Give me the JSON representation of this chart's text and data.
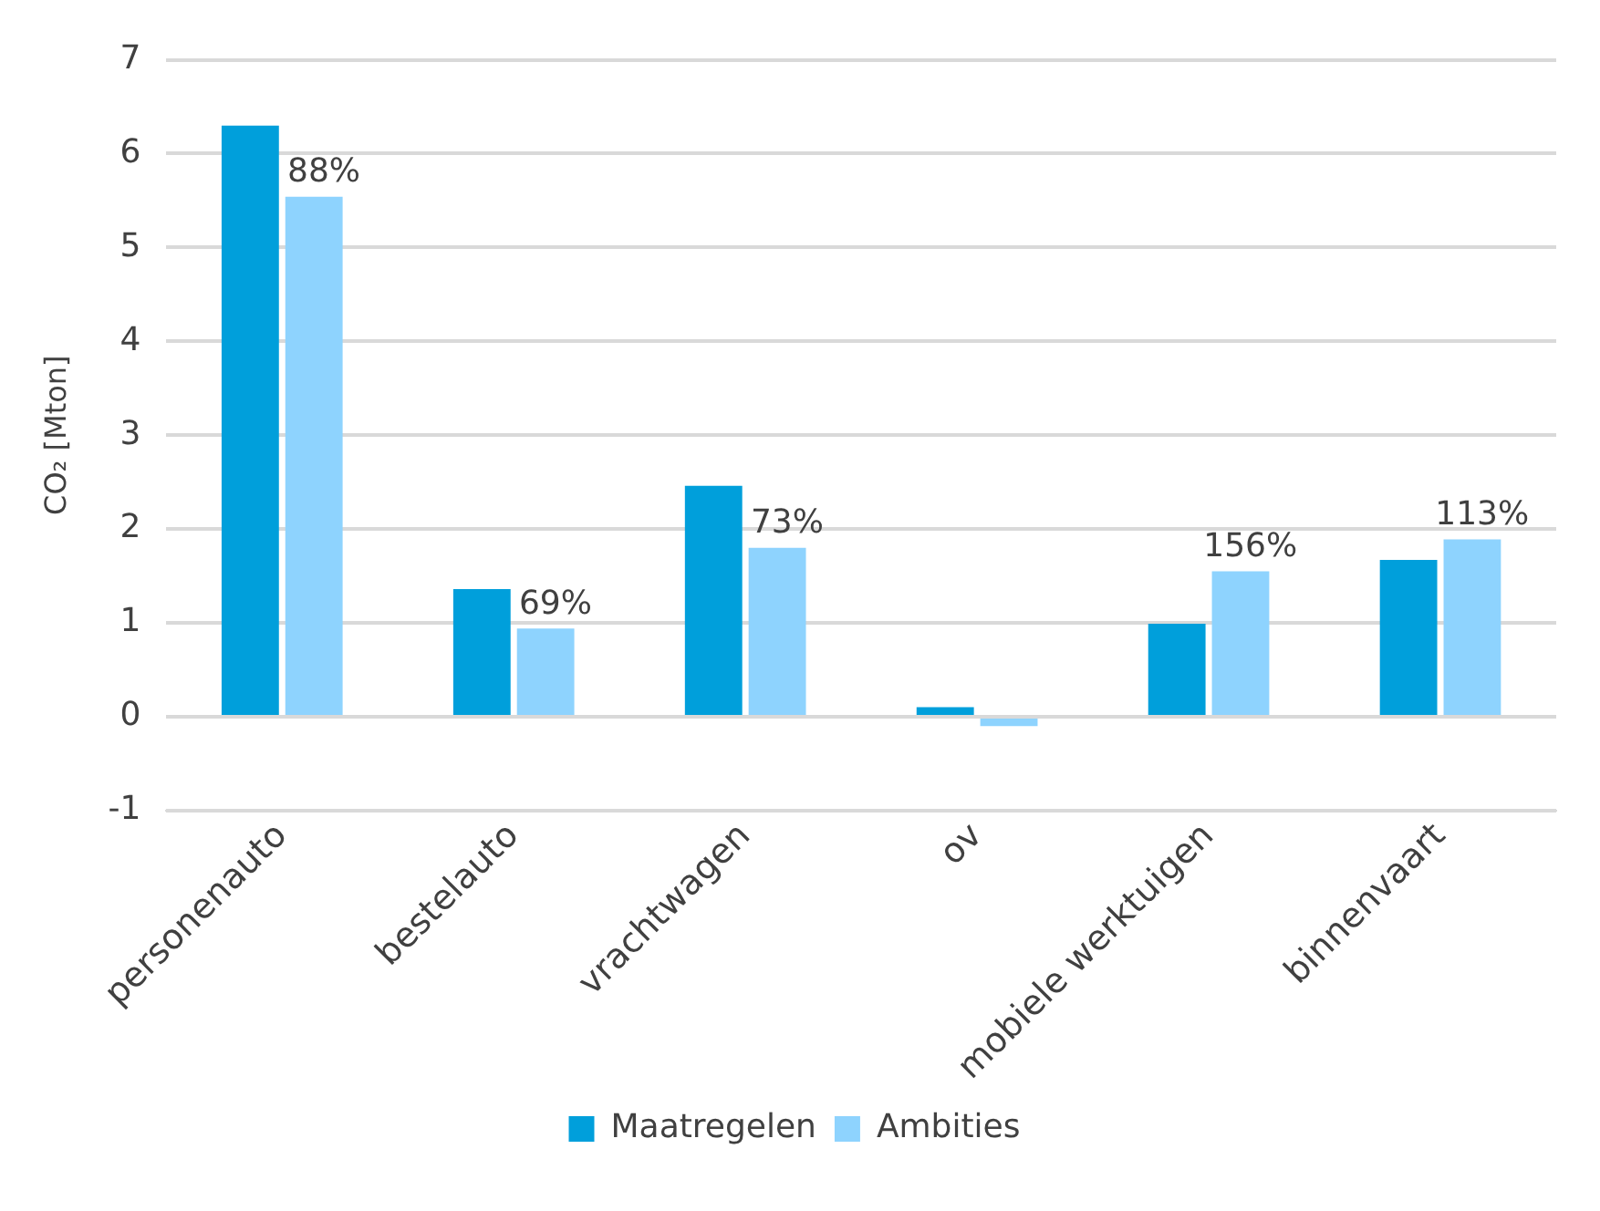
{
  "chart_data": {
    "type": "bar",
    "ylabel": "CO₂ [Mton]",
    "categories": [
      "personenauto",
      "bestelauto",
      "vrachtwagen",
      "ov",
      "mobiele werktuigen",
      "binnenvaart"
    ],
    "series": [
      {
        "name": "Maatregelen",
        "color": "#009fdb",
        "values": [
          6.3,
          1.36,
          2.46,
          0.1,
          0.99,
          1.67
        ]
      },
      {
        "name": "Ambities",
        "color": "#8ed3fe",
        "values": [
          5.54,
          0.94,
          1.8,
          -0.1,
          1.55,
          1.89
        ]
      }
    ],
    "ylim": [
      -1,
      7
    ],
    "yticks": [
      -1,
      0,
      1,
      2,
      3,
      4,
      5,
      6,
      7
    ],
    "grid": "y",
    "legend": "bottom",
    "annotations": [
      {
        "text": "88%",
        "x": "personenauto",
        "y": 5.54
      },
      {
        "text": "69%",
        "x": "bestelauto",
        "y": 0.94
      },
      {
        "text": "73%",
        "x": "vrachtwagen",
        "y": 1.8
      },
      {
        "text": "156%",
        "x": "mobiele werktuigen",
        "y": 1.55
      },
      {
        "text": "113%",
        "x": "binnenvaart",
        "y": 1.89
      }
    ]
  }
}
